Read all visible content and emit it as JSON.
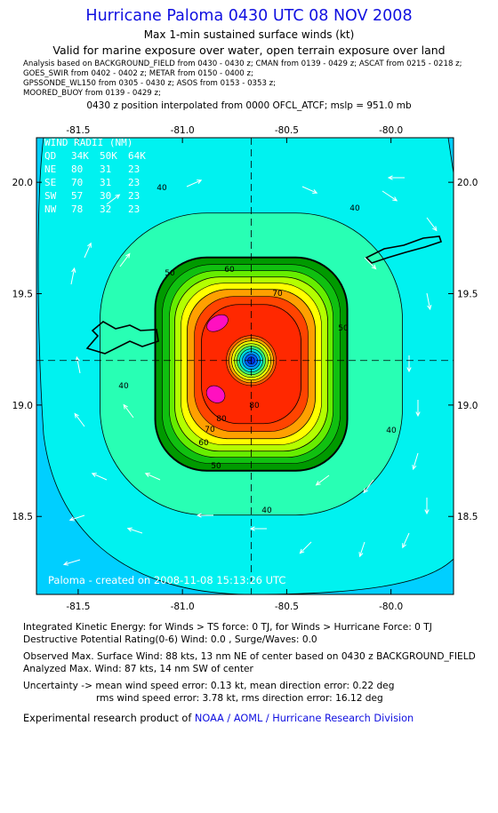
{
  "header": {
    "title": "Hurricane Paloma 0430 UTC 08 NOV 2008",
    "subtitle1": "Max 1-min sustained surface winds (kt)",
    "subtitle2": "Valid for marine exposure over water, open terrain exposure over land",
    "sources": [
      "Analysis based on  BACKGROUND_FIELD from 0430 - 0430 z;  CMAN from 0139 - 0429 z;  ASCAT from 0215 - 0218 z;",
      "GOES_SWIR from 0402 - 0402 z;  METAR from 0150 - 0400 z;",
      "GPSSONDE_WL150 from 0305 - 0430 z;  ASOS from 0153 - 0353 z;",
      "MOORED_BUOY from 0139 - 0429 z;"
    ],
    "position_line": "0430 z position interpolated from 0000 OFCL_ATCF; mslp = 951.0 mb"
  },
  "chart_data": {
    "type": "contour",
    "description_units": "kt",
    "center": {
      "lon": -80.67,
      "lat": 19.2
    },
    "xlim": [
      -81.7,
      -79.7
    ],
    "ylim": [
      18.15,
      20.2
    ],
    "x_ticks": [
      -81.5,
      -81.0,
      -80.5,
      -80.0
    ],
    "x_tick_labels": [
      "-81.5",
      "-81.0",
      "-80.5",
      "-80.0"
    ],
    "y_ticks": [
      18.5,
      19.0,
      19.5,
      20.0
    ],
    "y_tick_labels": [
      "18.5",
      "19.0",
      "19.5",
      "20.0"
    ],
    "contour_levels_labeled": [
      "40",
      "40",
      "40",
      "40",
      "40",
      "50",
      "50",
      "50",
      "60",
      "60",
      "70",
      "70",
      "80",
      "80"
    ],
    "contour_levels": [
      20,
      30,
      40,
      50,
      60,
      70,
      80
    ],
    "max_wind_kt": 88,
    "max_analyzed_kt": 87,
    "wind_radii_table": {
      "header": [
        "QD",
        "34K",
        "50K",
        "64K"
      ],
      "title": "WIND RADII (NM)",
      "rows": [
        [
          "NE",
          "80",
          "31",
          "23"
        ],
        [
          "SE",
          "70",
          "31",
          "23"
        ],
        [
          "SW",
          "57",
          "30",
          "23"
        ],
        [
          "NW",
          "78",
          "32",
          "23"
        ]
      ]
    },
    "credit": "Paloma - created on 2008-11-08 15:13:26 UTC",
    "colors": {
      "bg_low": "#00cfff",
      "cyan": "#00f2f0",
      "c40": "#28ffb4",
      "c50": "#009a00",
      "c55": "#66ee00",
      "c60": "#b4ff00",
      "c65": "#ffff00",
      "c70": "#ffa000",
      "c75": "#ff4400",
      "c80": "#ff2800",
      "max": "#ff10c0",
      "eye": "#0050ff"
    }
  },
  "footer": {
    "ike": "Integrated Kinetic Energy:  for Winds > TS force: 0 TJ,  for Winds > Hurricane Force: 0 TJ",
    "dpr": "Destructive Potential Rating(0-6)   Wind: 0.0 , Surge/Waves: 0.0",
    "obs_max": "Observed Max. Surface Wind: 88 kts, 13 nm NE of center based on 0430 z BACKGROUND_FIELD",
    "ana_max": "Analyzed Max. Wind: 87 kts, 14 nm SW of center",
    "uncert1": "Uncertainty -> mean wind speed error: 0.13 kt,   mean direction error: 0.22 deg",
    "uncert2": "rms wind speed error: 3.78 kt,   rms direction error: 16.12 deg",
    "credit_prefix": "Experimental research product of ",
    "credit_org": "NOAA / AOML / Hurricane Research Division"
  }
}
